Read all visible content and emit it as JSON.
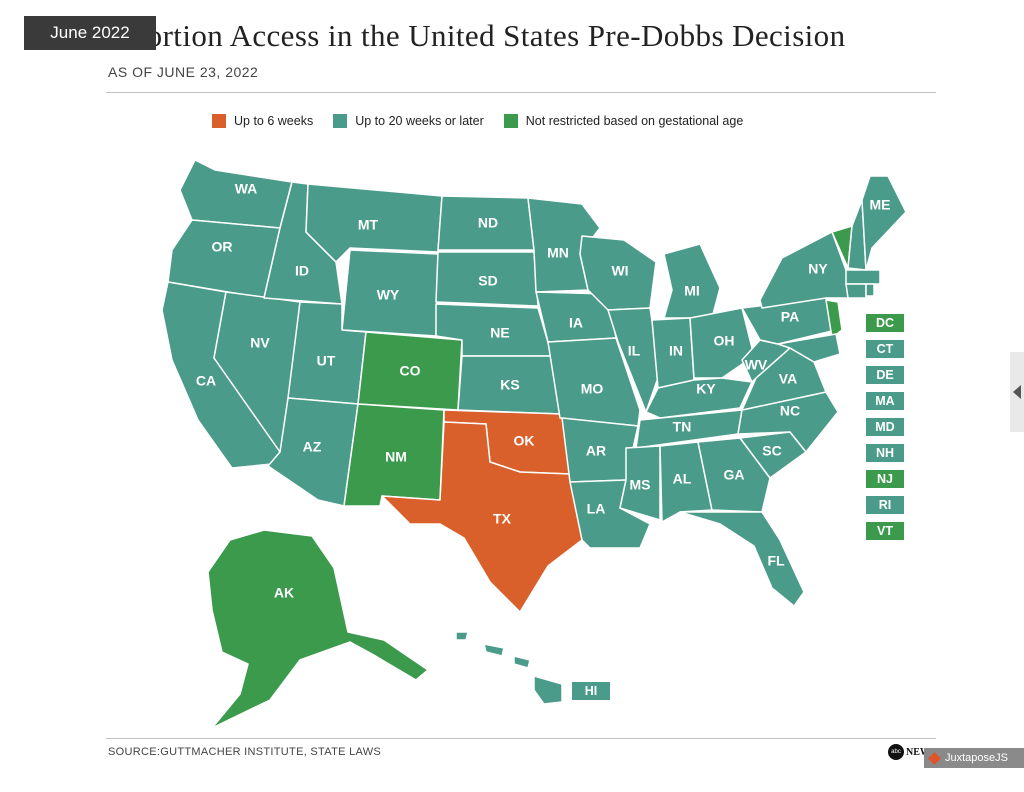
{
  "header": {
    "title": "Abortion Access in the United States Pre-Dobbs Decision",
    "subtitle": "AS OF JUNE 23, 2022",
    "date_badge": "June 2022"
  },
  "colors": {
    "up_to_6_weeks": "#d95f2b",
    "up_to_20_weeks": "#4a9b8a",
    "not_restricted": "#3b9a4c"
  },
  "legend": [
    {
      "label": "Up to 6 weeks",
      "color": "#d95f2b"
    },
    {
      "label": "Up to 20 weeks or later",
      "color": "#4a9b8a"
    },
    {
      "label": "Not restricted based on gestational age",
      "color": "#3b9a4c"
    }
  ],
  "states": {
    "WA": {
      "label": "WA",
      "category": "up_to_20_weeks"
    },
    "OR": {
      "label": "OR",
      "category": "up_to_20_weeks"
    },
    "CA": {
      "label": "CA",
      "category": "up_to_20_weeks"
    },
    "NV": {
      "label": "NV",
      "category": "up_to_20_weeks"
    },
    "ID": {
      "label": "ID",
      "category": "up_to_20_weeks"
    },
    "MT": {
      "label": "MT",
      "category": "up_to_20_weeks"
    },
    "WY": {
      "label": "WY",
      "category": "up_to_20_weeks"
    },
    "UT": {
      "label": "UT",
      "category": "up_to_20_weeks"
    },
    "AZ": {
      "label": "AZ",
      "category": "up_to_20_weeks"
    },
    "CO": {
      "label": "CO",
      "category": "not_restricted"
    },
    "NM": {
      "label": "NM",
      "category": "not_restricted"
    },
    "ND": {
      "label": "ND",
      "category": "up_to_20_weeks"
    },
    "SD": {
      "label": "SD",
      "category": "up_to_20_weeks"
    },
    "NE": {
      "label": "NE",
      "category": "up_to_20_weeks"
    },
    "KS": {
      "label": "KS",
      "category": "up_to_20_weeks"
    },
    "OK": {
      "label": "OK",
      "category": "up_to_6_weeks"
    },
    "TX": {
      "label": "TX",
      "category": "up_to_6_weeks"
    },
    "MN": {
      "label": "MN",
      "category": "up_to_20_weeks"
    },
    "IA": {
      "label": "IA",
      "category": "up_to_20_weeks"
    },
    "MO": {
      "label": "MO",
      "category": "up_to_20_weeks"
    },
    "AR": {
      "label": "AR",
      "category": "up_to_20_weeks"
    },
    "LA": {
      "label": "LA",
      "category": "up_to_20_weeks"
    },
    "WI": {
      "label": "WI",
      "category": "up_to_20_weeks"
    },
    "IL": {
      "label": "IL",
      "category": "up_to_20_weeks"
    },
    "MI": {
      "label": "MI",
      "category": "up_to_20_weeks"
    },
    "IN": {
      "label": "IN",
      "category": "up_to_20_weeks"
    },
    "OH": {
      "label": "OH",
      "category": "up_to_20_weeks"
    },
    "KY": {
      "label": "KY",
      "category": "up_to_20_weeks"
    },
    "TN": {
      "label": "TN",
      "category": "up_to_20_weeks"
    },
    "MS": {
      "label": "MS",
      "category": "up_to_20_weeks"
    },
    "AL": {
      "label": "AL",
      "category": "up_to_20_weeks"
    },
    "GA": {
      "label": "GA",
      "category": "up_to_20_weeks"
    },
    "FL": {
      "label": "FL",
      "category": "up_to_20_weeks"
    },
    "SC": {
      "label": "SC",
      "category": "up_to_20_weeks"
    },
    "NC": {
      "label": "NC",
      "category": "up_to_20_weeks"
    },
    "VA": {
      "label": "VA",
      "category": "up_to_20_weeks"
    },
    "WV": {
      "label": "WV",
      "category": "up_to_20_weeks"
    },
    "PA": {
      "label": "PA",
      "category": "up_to_20_weeks"
    },
    "NY": {
      "label": "NY",
      "category": "up_to_20_weeks"
    },
    "ME": {
      "label": "ME",
      "category": "up_to_20_weeks"
    },
    "AK": {
      "label": "AK",
      "category": "not_restricted"
    }
  },
  "small_states": [
    {
      "label": "DC",
      "category": "not_restricted"
    },
    {
      "label": "CT",
      "category": "up_to_20_weeks"
    },
    {
      "label": "DE",
      "category": "up_to_20_weeks"
    },
    {
      "label": "MA",
      "category": "up_to_20_weeks"
    },
    {
      "label": "MD",
      "category": "up_to_20_weeks"
    },
    {
      "label": "NH",
      "category": "up_to_20_weeks"
    },
    {
      "label": "NJ",
      "category": "not_restricted"
    },
    {
      "label": "RI",
      "category": "up_to_20_weeks"
    },
    {
      "label": "VT",
      "category": "not_restricted"
    }
  ],
  "hawaii": {
    "label": "HI",
    "category": "up_to_20_weeks"
  },
  "footer": {
    "source": "SOURCE:GUTTMACHER INSTITUTE, STATE LAWS",
    "logo_mark": "abc",
    "logo_text": "NEWS",
    "juxtapose_label": "JuxtaposeJS"
  }
}
